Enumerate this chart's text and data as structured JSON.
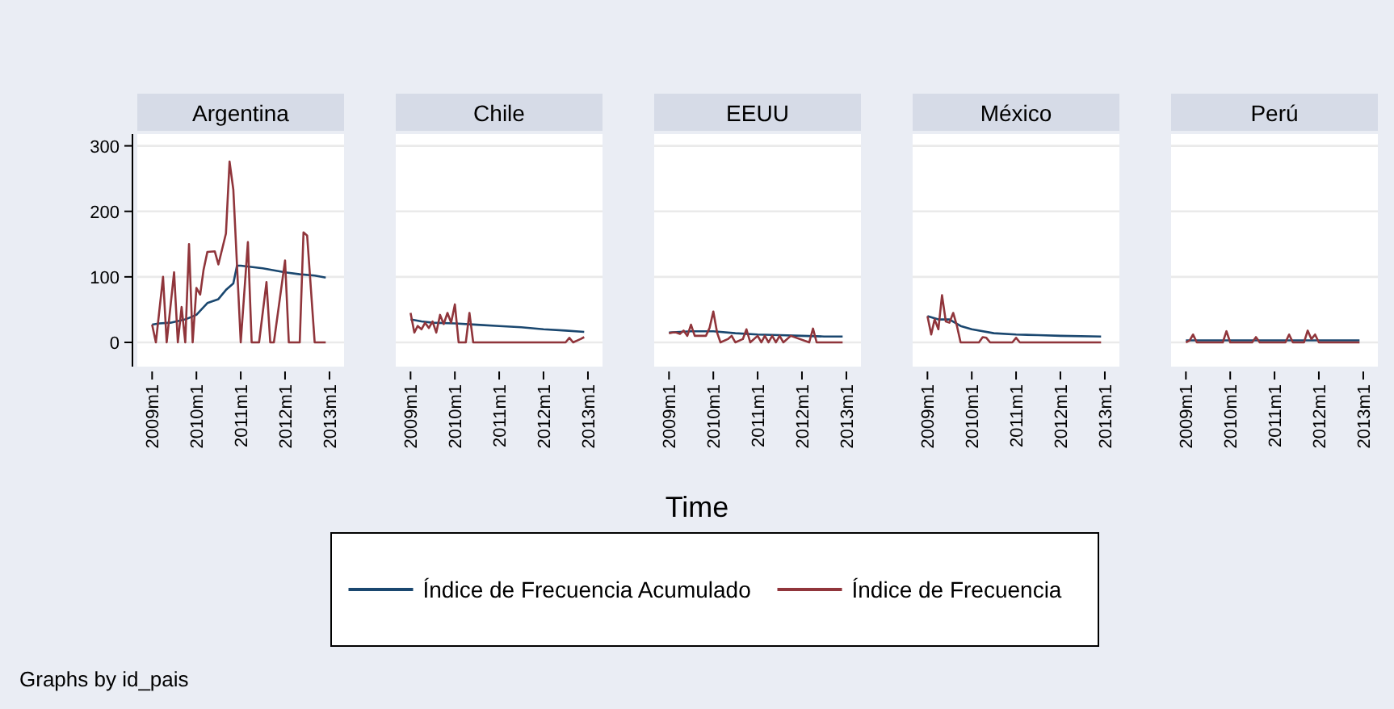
{
  "chart_data": [
    {
      "type": "line",
      "title": "Argentina",
      "x": [
        "2009-01",
        "2009-02",
        "2009-04",
        "2009-05",
        "2009-07",
        "2009-08",
        "2009-09",
        "2009-10",
        "2009-11",
        "2009-12",
        "2010-01",
        "2010-02",
        "2010-03",
        "2010-04",
        "2010-06",
        "2010-07",
        "2010-09",
        "2010-10",
        "2010-11",
        "2011-01",
        "2011-03",
        "2011-04",
        "2011-06",
        "2011-08",
        "2011-09",
        "2011-10",
        "2012-01",
        "2012-02",
        "2012-05",
        "2012-06",
        "2012-07",
        "2012-09",
        "2012-12"
      ],
      "xlim": [
        "2008-09",
        "2013-05"
      ],
      "ylim": [
        -37,
        318
      ],
      "yticks": [
        0,
        100,
        200,
        300
      ],
      "xticks": [
        {
          "value": "2009-01",
          "label": "2009m1"
        },
        {
          "value": "2010-01",
          "label": "2010m1"
        },
        {
          "value": "2011-01",
          "label": "2011m1"
        },
        {
          "value": "2012-01",
          "label": "2012m1"
        },
        {
          "value": "2013-01",
          "label": "2013m1"
        }
      ],
      "grid": "y",
      "series": [
        {
          "color": "#1a476f",
          "x": [
            "2009-01",
            "2009-03",
            "2009-06",
            "2009-10",
            "2010-01",
            "2010-04",
            "2010-07",
            "2010-09",
            "2010-11",
            "2010-12",
            "2011-01",
            "2011-07",
            "2012-01",
            "2012-05",
            "2012-09",
            "2012-12"
          ],
          "values": [
            27,
            29,
            30,
            35,
            42,
            60,
            66,
            80,
            90,
            117,
            117,
            113,
            107,
            104,
            102,
            99
          ]
        },
        {
          "color": "#90353b",
          "values": [
            27,
            0,
            100,
            0,
            107,
            0,
            54,
            0,
            150,
            0,
            83,
            73,
            111,
            138,
            139,
            119,
            166,
            276,
            233,
            0,
            153,
            0,
            0,
            92,
            0,
            0,
            125,
            0,
            0,
            168,
            163,
            0,
            0
          ]
        }
      ]
    },
    {
      "type": "line",
      "title": "Chile",
      "tick_labels": "x",
      "xlim": [
        "2008-09",
        "2013-05"
      ],
      "ylim": [
        -37,
        318
      ],
      "yticks": [
        0,
        100,
        200,
        300
      ],
      "xticks": [
        {
          "value": "2009-01",
          "label": "2009m1"
        },
        {
          "value": "2010-01",
          "label": "2010m1"
        },
        {
          "value": "2011-01",
          "label": "2011m1"
        },
        {
          "value": "2012-01",
          "label": "2012m1"
        },
        {
          "value": "2013-01",
          "label": "2013m1"
        }
      ],
      "grid": "y",
      "series": [
        {
          "color": "#1a476f",
          "x": [
            "2009-01",
            "2009-04",
            "2009-07",
            "2010-01",
            "2010-07",
            "2011-01",
            "2011-07",
            "2012-01",
            "2012-07",
            "2012-12"
          ],
          "values": [
            35,
            32,
            30,
            29,
            27,
            25,
            23,
            20,
            18,
            16
          ]
        },
        {
          "color": "#90353b",
          "x": [
            "2009-01",
            "2009-02",
            "2009-03",
            "2009-04",
            "2009-05",
            "2009-06",
            "2009-07",
            "2009-08",
            "2009-09",
            "2009-10",
            "2009-11",
            "2009-12",
            "2010-01",
            "2010-02",
            "2010-04",
            "2010-05",
            "2010-06",
            "2012-07",
            "2012-08",
            "2012-09",
            "2012-11",
            "2012-12"
          ],
          "values": [
            45,
            15,
            25,
            20,
            30,
            22,
            32,
            15,
            42,
            28,
            45,
            30,
            58,
            0,
            0,
            45,
            0,
            0,
            7,
            0,
            5,
            8
          ]
        }
      ]
    },
    {
      "type": "line",
      "title": "EEUU",
      "tick_labels": "x",
      "xlim": [
        "2008-09",
        "2013-05"
      ],
      "ylim": [
        -37,
        318
      ],
      "yticks": [
        0,
        100,
        200,
        300
      ],
      "xticks": [
        {
          "value": "2009-01",
          "label": "2009m1"
        },
        {
          "value": "2010-01",
          "label": "2010m1"
        },
        {
          "value": "2011-01",
          "label": "2011m1"
        },
        {
          "value": "2012-01",
          "label": "2012m1"
        },
        {
          "value": "2013-01",
          "label": "2013m1"
        }
      ],
      "grid": "y",
      "xlabel": "Time",
      "legend": "bottom",
      "annotations": [
        "Graphs by id_pais"
      ],
      "series": [
        {
          "name": "Índice de Frecuencia Acumulado",
          "color": "#1a476f",
          "x": [
            "2009-01",
            "2009-07",
            "2010-01",
            "2010-07",
            "2011-01",
            "2011-07",
            "2012-01",
            "2012-07",
            "2012-12"
          ],
          "values": [
            15,
            17,
            17,
            14,
            12,
            11,
            10,
            9,
            9
          ]
        },
        {
          "name": "Índice de Frecuencia",
          "color": "#90353b",
          "x": [
            "2009-01",
            "2009-02",
            "2009-03",
            "2009-04",
            "2009-05",
            "2009-06",
            "2009-07",
            "2009-08",
            "2009-09",
            "2009-11",
            "2009-12",
            "2010-01",
            "2010-02",
            "2010-03",
            "2010-05",
            "2010-06",
            "2010-07",
            "2010-09",
            "2010-10",
            "2010-11",
            "2011-01",
            "2011-02",
            "2011-03",
            "2011-04",
            "2011-05",
            "2011-06",
            "2011-07",
            "2011-08",
            "2011-10",
            "2012-03",
            "2012-04",
            "2012-05",
            "2012-10",
            "2012-12"
          ],
          "values": [
            14,
            15,
            15,
            13,
            18,
            10,
            27,
            10,
            10,
            10,
            22,
            47,
            15,
            0,
            5,
            10,
            0,
            5,
            20,
            0,
            10,
            0,
            10,
            0,
            10,
            0,
            10,
            0,
            10,
            0,
            21,
            0,
            0,
            0
          ]
        }
      ]
    },
    {
      "type": "line",
      "title": "México",
      "tick_labels": "x",
      "xlim": [
        "2008-09",
        "2013-05"
      ],
      "ylim": [
        -37,
        318
      ],
      "yticks": [
        0,
        100,
        200,
        300
      ],
      "xticks": [
        {
          "value": "2009-01",
          "label": "2009m1"
        },
        {
          "value": "2010-01",
          "label": "2010m1"
        },
        {
          "value": "2011-01",
          "label": "2011m1"
        },
        {
          "value": "2012-01",
          "label": "2012m1"
        },
        {
          "value": "2013-01",
          "label": "2013m1"
        }
      ],
      "grid": "y",
      "series": [
        {
          "color": "#1a476f",
          "x": [
            "2009-01",
            "2009-04",
            "2009-07",
            "2009-10",
            "2010-01",
            "2010-07",
            "2011-01",
            "2011-07",
            "2012-01",
            "2012-12"
          ],
          "values": [
            40,
            35,
            35,
            25,
            20,
            14,
            12,
            11,
            10,
            9
          ]
        },
        {
          "color": "#90353b",
          "x": [
            "2009-01",
            "2009-02",
            "2009-03",
            "2009-04",
            "2009-05",
            "2009-06",
            "2009-07",
            "2009-08",
            "2009-09",
            "2009-10",
            "2010-03",
            "2010-04",
            "2010-05",
            "2010-06",
            "2010-12",
            "2011-01",
            "2011-02",
            "2012-12"
          ],
          "values": [
            40,
            12,
            35,
            20,
            72,
            32,
            30,
            45,
            25,
            0,
            0,
            8,
            7,
            0,
            0,
            7,
            0,
            0
          ]
        }
      ]
    },
    {
      "type": "line",
      "title": "Perú",
      "tick_labels": "x",
      "xlim": [
        "2008-09",
        "2013-05"
      ],
      "ylim": [
        -37,
        318
      ],
      "yticks": [
        0,
        100,
        200,
        300
      ],
      "xticks": [
        {
          "value": "2009-01",
          "label": "2009m1"
        },
        {
          "value": "2010-01",
          "label": "2010m1"
        },
        {
          "value": "2011-01",
          "label": "2011m1"
        },
        {
          "value": "2012-01",
          "label": "2012m1"
        },
        {
          "value": "2013-01",
          "label": "2013m1"
        }
      ],
      "grid": "y",
      "series": [
        {
          "color": "#1a476f",
          "x": [
            "2009-01",
            "2010-01",
            "2011-01",
            "2012-01",
            "2012-12"
          ],
          "values": [
            3,
            3,
            3,
            3,
            3
          ]
        },
        {
          "color": "#90353b",
          "x": [
            "2009-01",
            "2009-02",
            "2009-03",
            "2009-04",
            "2009-11",
            "2009-12",
            "2010-01",
            "2010-07",
            "2010-08",
            "2010-09",
            "2011-04",
            "2011-05",
            "2011-06",
            "2011-09",
            "2011-10",
            "2011-11",
            "2011-12",
            "2012-01",
            "2012-12"
          ],
          "values": [
            0,
            3,
            12,
            0,
            0,
            17,
            0,
            0,
            8,
            0,
            0,
            12,
            0,
            0,
            18,
            5,
            12,
            0,
            0
          ]
        }
      ]
    }
  ]
}
